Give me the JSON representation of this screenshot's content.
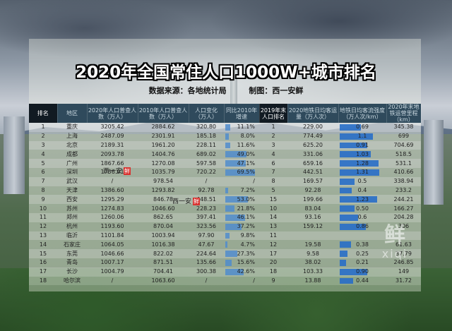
{
  "title": "2020年全国常住人口1000W+城市排名",
  "source_label": "数据来源：各地统计局",
  "author_label": "制图：西一安鲜",
  "headers": [
    "排名",
    "地区",
    "2020年人口普查人数（万人）",
    "2010年人口普查人数（万人）",
    "人口变化（万人）",
    "同比2010年增速",
    "2019年末人口排名",
    "2020地铁日均客运量（万人次）",
    "地铁日均客流强度（万人次/km）",
    "2020年末地铁运营里程（km）"
  ],
  "rows": [
    {
      "rank": "1",
      "region": "重庆",
      "pop2020": "3205.42",
      "pop2010": "2884.62",
      "change": "320.80",
      "rate": "11.1%",
      "rate_val": 11.1,
      "rank2019": "1",
      "metro": "229.00",
      "flow": "0.69",
      "flow_val": 0.69,
      "km": "345.38"
    },
    {
      "rank": "2",
      "region": "上海",
      "pop2020": "2487.09",
      "pop2010": "2301.91",
      "change": "185.18",
      "rate": "8.0%",
      "rate_val": 8.0,
      "rank2019": "2",
      "metro": "774.49",
      "flow": "1.1",
      "flow_val": 1.1,
      "km": "699"
    },
    {
      "rank": "3",
      "region": "北京",
      "pop2020": "2189.31",
      "pop2010": "1961.20",
      "change": "228.11",
      "rate": "11.6%",
      "rate_val": 11.6,
      "rank2019": "3",
      "metro": "625.20",
      "flow": "0.91",
      "flow_val": 0.91,
      "km": "704.69"
    },
    {
      "rank": "4",
      "region": "成都",
      "pop2020": "2093.78",
      "pop2010": "1404.76",
      "change": "689.02",
      "rate": "49.0%",
      "rate_val": 49.0,
      "rank2019": "4",
      "metro": "331.06",
      "flow": "1.03",
      "flow_val": 1.03,
      "km": "518.5"
    },
    {
      "rank": "5",
      "region": "广州",
      "pop2020": "1867.66",
      "pop2010": "1270.08",
      "change": "597.58",
      "rate": "47.1%",
      "rate_val": 47.1,
      "rank2019": "6",
      "metro": "659.16",
      "flow": "1.28",
      "flow_val": 1.28,
      "km": "531.1"
    },
    {
      "rank": "6",
      "region": "深圳",
      "pop2020": "1756.01",
      "pop2010": "1035.79",
      "change": "720.22",
      "rate": "69.5%",
      "rate_val": 69.5,
      "rank2019": "7",
      "metro": "442.51",
      "flow": "1.31",
      "flow_val": 1.31,
      "km": "410.66"
    },
    {
      "rank": "7",
      "region": "武汉",
      "pop2020": "/",
      "pop2010": "978.54",
      "change": "/",
      "rate": "/",
      "rate_val": 0,
      "rank2019": "8",
      "metro": "169.57",
      "flow": "0.5",
      "flow_val": 0.5,
      "km": "338.94"
    },
    {
      "rank": "8",
      "region": "天津",
      "pop2020": "1386.60",
      "pop2010": "1293.82",
      "change": "92.78",
      "rate": "7.2%",
      "rate_val": 7.2,
      "rank2019": "5",
      "metro": "92.28",
      "flow": "0.4",
      "flow_val": 0.4,
      "km": "233.2"
    },
    {
      "rank": "9",
      "region": "西安",
      "pop2020": "1295.29",
      "pop2010": "846.78",
      "change": "448.51",
      "rate": "53.0%",
      "rate_val": 53.0,
      "rank2019": "15",
      "metro": "199.66",
      "flow": "1.23",
      "flow_val": 1.23,
      "km": "244.21"
    },
    {
      "rank": "10",
      "region": "苏州",
      "pop2020": "1274.83",
      "pop2010": "1046.60",
      "change": "228.23",
      "rate": "21.8%",
      "rate_val": 21.8,
      "rank2019": "10",
      "metro": "83.04",
      "flow": "0.50",
      "flow_val": 0.5,
      "km": "166.27"
    },
    {
      "rank": "11",
      "region": "郑州",
      "pop2020": "1260.06",
      "pop2010": "862.65",
      "change": "397.41",
      "rate": "46.1%",
      "rate_val": 46.1,
      "rank2019": "14",
      "metro": "93.16",
      "flow": "0.6",
      "flow_val": 0.6,
      "km": "204.28"
    },
    {
      "rank": "12",
      "region": "杭州",
      "pop2020": "1193.60",
      "pop2010": "870.04",
      "change": "323.56",
      "rate": "37.2%",
      "rate_val": 37.2,
      "rank2019": "13",
      "metro": "159.12",
      "flow": "0.86",
      "flow_val": 0.86,
      "km": "306"
    },
    {
      "rank": "13",
      "region": "临沂",
      "pop2020": "1101.84",
      "pop2010": "1003.94",
      "change": "97.90",
      "rate": "9.8%",
      "rate_val": 9.8,
      "rank2019": "11",
      "metro": "",
      "flow": "",
      "flow_val": 0,
      "km": ""
    },
    {
      "rank": "14",
      "region": "石家庄",
      "pop2020": "1064.05",
      "pop2010": "1016.38",
      "change": "47.67",
      "rate": "4.7%",
      "rate_val": 4.7,
      "rank2019": "12",
      "metro": "19.58",
      "flow": "0.38",
      "flow_val": 0.38,
      "km": "61.63"
    },
    {
      "rank": "15",
      "region": "东莞",
      "pop2020": "1046.66",
      "pop2010": "822.02",
      "change": "224.64",
      "rate": "27.3%",
      "rate_val": 27.3,
      "rank2019": "17",
      "metro": "9.58",
      "flow": "0.25",
      "flow_val": 0.25,
      "km": "37.79"
    },
    {
      "rank": "16",
      "region": "青岛",
      "pop2020": "1007.17",
      "pop2010": "871.51",
      "change": "135.66",
      "rate": "15.6%",
      "rate_val": 15.6,
      "rank2019": "20",
      "metro": "38.02",
      "flow": "0.21",
      "flow_val": 0.21,
      "km": "246.85"
    },
    {
      "rank": "17",
      "region": "长沙",
      "pop2020": "1004.79",
      "pop2010": "704.41",
      "change": "300.38",
      "rate": "42.6%",
      "rate_val": 42.6,
      "rank2019": "18",
      "metro": "103.33",
      "flow": "0.90",
      "flow_val": 0.9,
      "km": "149"
    },
    {
      "rank": "18",
      "region": "哈尔滨",
      "pop2020": "/",
      "pop2010": "1063.60",
      "change": "/",
      "rate": "/",
      "rate_val": 0,
      "rank2019": "9",
      "metro": "13.88",
      "flow": "0.44",
      "flow_val": 0.44,
      "km": "31.72"
    }
  ],
  "watermark": {
    "text": "西一安",
    "seal": "鲜"
  },
  "logo": {
    "big": "鲜",
    "small": "xiqi"
  }
}
